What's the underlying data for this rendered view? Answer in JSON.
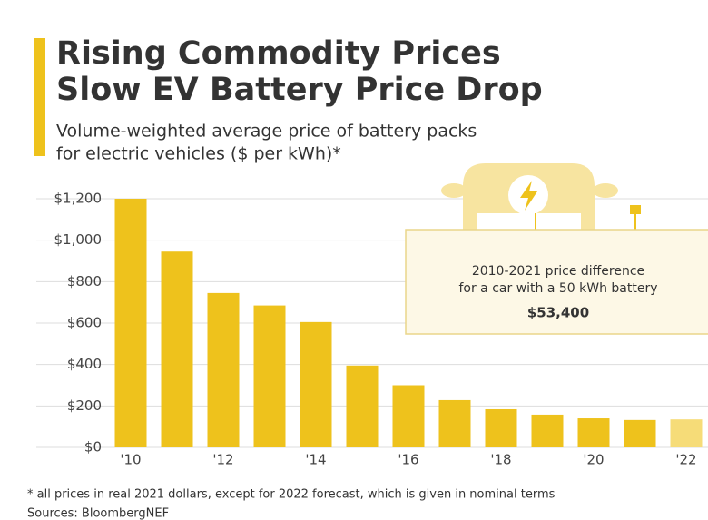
{
  "chart_data": {
    "type": "bar",
    "title": [
      "Rising Commodity Prices",
      "Slow EV Battery Price Drop"
    ],
    "subtitle": [
      "Volume-weighted average price of battery packs",
      "for electric vehicles ($ per kWh)*"
    ],
    "categories": [
      "'10",
      null,
      "'12",
      null,
      "'14",
      null,
      "'16",
      null,
      "'18",
      null,
      "'20",
      null,
      "'22"
    ],
    "values": [
      1200,
      945,
      745,
      685,
      605,
      395,
      300,
      228,
      184,
      158,
      140,
      132,
      135
    ],
    "colors": [
      "#eec21c",
      "#eec21c",
      "#eec21c",
      "#eec21c",
      "#eec21c",
      "#eec21c",
      "#eec21c",
      "#eec21c",
      "#eec21c",
      "#eec21c",
      "#eec21c",
      "#eec21c",
      "#f6dc78"
    ],
    "ylim": [
      0,
      1200
    ],
    "yticks": [
      {
        "value": 0,
        "label": "$0"
      },
      {
        "value": 200,
        "label": "$200"
      },
      {
        "value": 400,
        "label": "$400"
      },
      {
        "value": 600,
        "label": "$600"
      },
      {
        "value": 800,
        "label": "$800"
      },
      {
        "value": 1000,
        "label": "$1,000"
      },
      {
        "value": 1200,
        "label": "$1,200"
      }
    ],
    "grid": true,
    "annotation": {
      "lines": [
        "2010-2021 price difference",
        "for a car with a 50 kWh battery"
      ],
      "value": "$53,400"
    },
    "footnote": "* all prices in real 2021 dollars, except for 2022 forecast, which is given in nominal terms",
    "source": "Sources: BloombergNEF"
  }
}
